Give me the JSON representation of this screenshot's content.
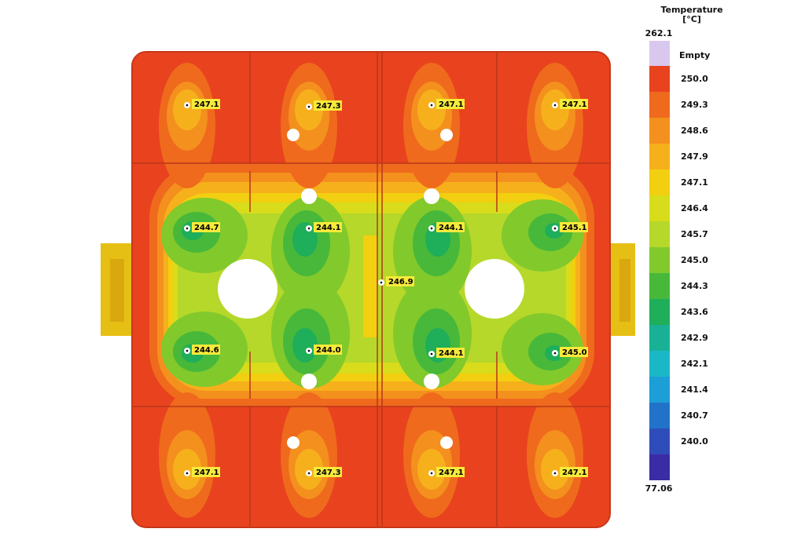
{
  "legend": {
    "title": "Temperature",
    "unit": "[°C]",
    "max_label": "262.1",
    "min_label": "77.06",
    "empty_label": "Empty",
    "empty_color": "#d9c8ee",
    "steps": [
      {
        "value": "250.0",
        "color": "#e8431e"
      },
      {
        "value": "249.3",
        "color": "#ef6a1d"
      },
      {
        "value": "248.6",
        "color": "#f4901e"
      },
      {
        "value": "247.9",
        "color": "#f6b01c"
      },
      {
        "value": "247.1",
        "color": "#f2cf10"
      },
      {
        "value": "246.4",
        "color": "#d9dc1a"
      },
      {
        "value": "245.7",
        "color": "#b5d82a"
      },
      {
        "value": "245.0",
        "color": "#82c92c"
      },
      {
        "value": "244.3",
        "color": "#47b83a"
      },
      {
        "value": "243.6",
        "color": "#1fae5a"
      },
      {
        "value": "242.9",
        "color": "#18b196"
      },
      {
        "value": "242.1",
        "color": "#1ab8c6"
      },
      {
        "value": "241.4",
        "color": "#1c9ed6"
      },
      {
        "value": "240.7",
        "color": "#2173c9"
      },
      {
        "value": "240.0",
        "color": "#2f4cbb"
      },
      {
        "value": "",
        "color": "#3a2ca4"
      }
    ]
  },
  "probes": [
    {
      "label": "247.1"
    },
    {
      "label": "247.3"
    },
    {
      "label": "247.1"
    },
    {
      "label": "247.1"
    },
    {
      "label": "244.7"
    },
    {
      "label": "244.1"
    },
    {
      "label": "244.1"
    },
    {
      "label": "245.1"
    },
    {
      "label": "246.9"
    },
    {
      "label": "244.6"
    },
    {
      "label": "244.0"
    },
    {
      "label": "244.1"
    },
    {
      "label": "245.0"
    },
    {
      "label": "247.1"
    },
    {
      "label": "247.3"
    },
    {
      "label": "247.1"
    },
    {
      "label": "247.1"
    }
  ],
  "colors": {
    "hot": "#e8431e",
    "hot2": "#ef6a1d",
    "warm": "#f4901e",
    "yellow": "#f2cf10",
    "lime": "#b5d82a",
    "green": "#82c92c",
    "green2": "#47b83a",
    "teal": "#1fae5a",
    "label_bg": "#f7ea3a"
  }
}
